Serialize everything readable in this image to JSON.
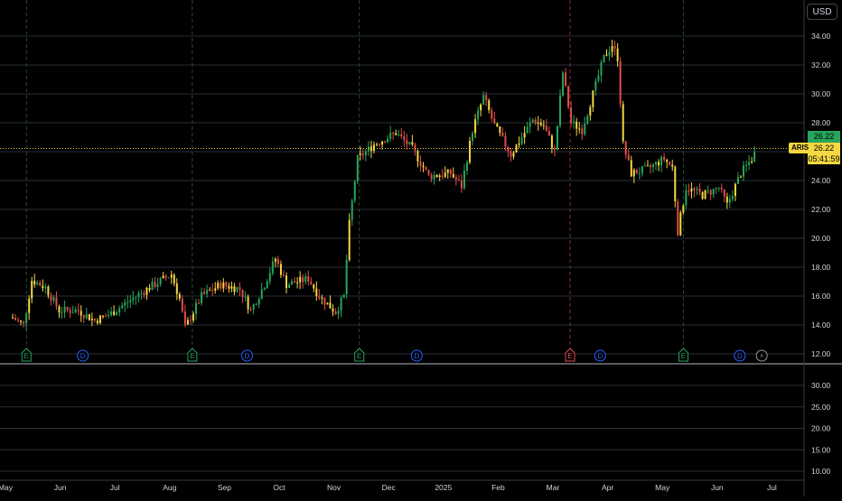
{
  "currency": "USD",
  "symbol": "ARIS",
  "last_price_label": "26.22",
  "countdown": "05:41:59",
  "colors": {
    "up": "#26a65b",
    "down": "#e34b4b",
    "neutral": "#f5d742",
    "grid": "#2a2e39",
    "text": "#d1d4dc",
    "earnings_marker": "#26a65b",
    "dividend_marker": "#2962ff"
  },
  "chart_data": {
    "type": "candlestick",
    "x_ticks": [
      "May",
      "Jun",
      "Jul",
      "Aug",
      "Sep",
      "Oct",
      "Nov",
      "Dec",
      "2025",
      "Feb",
      "Mar",
      "Apr",
      "May",
      "Jun",
      "Jul"
    ],
    "price_axis": {
      "ticks": [
        "12.00",
        "14.00",
        "16.00",
        "18.00",
        "20.00",
        "22.00",
        "24.00",
        "26.00",
        "28.00",
        "30.00",
        "32.00",
        "34.00"
      ],
      "range": [
        11,
        35.5
      ]
    },
    "volume_axis": {
      "ticks": [
        "10.00",
        "15.00",
        "20.00",
        "25.00",
        "30.00"
      ],
      "range": [
        8,
        33
      ]
    },
    "last_price": 26.22,
    "markers": [
      {
        "type": "E",
        "month": "May"
      },
      {
        "type": "D",
        "month": "Jun"
      },
      {
        "type": "E",
        "month": "Aug"
      },
      {
        "type": "D",
        "month": "Sep"
      },
      {
        "type": "E",
        "month": "Nov"
      },
      {
        "type": "D",
        "month": "Dec"
      },
      {
        "type": "E",
        "month": "Mar",
        "highlight": true
      },
      {
        "type": "D",
        "month": "Mar"
      },
      {
        "type": "E",
        "month": "May"
      },
      {
        "type": "D",
        "month": "Jun"
      },
      {
        "type": "⚡",
        "month": "Jun"
      }
    ],
    "price_path": [
      {
        "m": 0.0,
        "p": 14.5
      },
      {
        "m": 0.2,
        "p": 14.0
      },
      {
        "m": 0.35,
        "p": 17.1
      },
      {
        "m": 0.6,
        "p": 16.6
      },
      {
        "m": 0.85,
        "p": 15.0
      },
      {
        "m": 1.2,
        "p": 15.0
      },
      {
        "m": 1.5,
        "p": 14.3
      },
      {
        "m": 1.8,
        "p": 14.8
      },
      {
        "m": 2.1,
        "p": 15.6
      },
      {
        "m": 2.5,
        "p": 16.6
      },
      {
        "m": 2.9,
        "p": 17.5
      },
      {
        "m": 3.05,
        "p": 15.8
      },
      {
        "m": 3.15,
        "p": 13.8
      },
      {
        "m": 3.45,
        "p": 16.0
      },
      {
        "m": 3.8,
        "p": 16.8
      },
      {
        "m": 4.15,
        "p": 16.5
      },
      {
        "m": 4.35,
        "p": 15.0
      },
      {
        "m": 4.6,
        "p": 16.8
      },
      {
        "m": 4.8,
        "p": 18.6
      },
      {
        "m": 5.0,
        "p": 16.8
      },
      {
        "m": 5.4,
        "p": 17.2
      },
      {
        "m": 5.6,
        "p": 16.0
      },
      {
        "m": 5.9,
        "p": 14.9
      },
      {
        "m": 6.05,
        "p": 16.0
      },
      {
        "m": 6.15,
        "p": 21.0
      },
      {
        "m": 6.3,
        "p": 25.5
      },
      {
        "m": 6.6,
        "p": 26.5
      },
      {
        "m": 7.0,
        "p": 27.3
      },
      {
        "m": 7.3,
        "p": 26.2
      },
      {
        "m": 7.6,
        "p": 24.3
      },
      {
        "m": 8.0,
        "p": 24.5
      },
      {
        "m": 8.2,
        "p": 23.6
      },
      {
        "m": 8.4,
        "p": 27.5
      },
      {
        "m": 8.6,
        "p": 29.8
      },
      {
        "m": 8.8,
        "p": 27.8
      },
      {
        "m": 9.1,
        "p": 25.8
      },
      {
        "m": 9.5,
        "p": 28.2
      },
      {
        "m": 9.7,
        "p": 27.8
      },
      {
        "m": 9.9,
        "p": 26.0
      },
      {
        "m": 10.05,
        "p": 31.5
      },
      {
        "m": 10.2,
        "p": 28.0
      },
      {
        "m": 10.4,
        "p": 27.5
      },
      {
        "m": 10.6,
        "p": 30.0
      },
      {
        "m": 10.8,
        "p": 32.5
      },
      {
        "m": 10.95,
        "p": 33.4
      },
      {
        "m": 11.05,
        "p": 32.5
      },
      {
        "m": 11.15,
        "p": 26.5
      },
      {
        "m": 11.3,
        "p": 24.5
      },
      {
        "m": 11.6,
        "p": 24.8
      },
      {
        "m": 11.9,
        "p": 25.5
      },
      {
        "m": 12.05,
        "p": 24.9
      },
      {
        "m": 12.15,
        "p": 20.5
      },
      {
        "m": 12.3,
        "p": 23.5
      },
      {
        "m": 12.6,
        "p": 23.0
      },
      {
        "m": 12.9,
        "p": 23.5
      },
      {
        "m": 13.05,
        "p": 22.3
      },
      {
        "m": 13.3,
        "p": 24.5
      },
      {
        "m": 13.5,
        "p": 25.5
      },
      {
        "m": 13.6,
        "p": 26.22
      }
    ],
    "volume_path": []
  }
}
